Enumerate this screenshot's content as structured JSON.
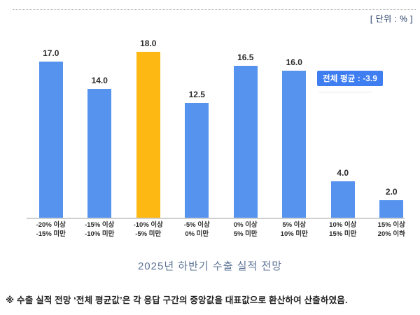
{
  "unit_label": "[ 단위 : % ]",
  "average_badge_label": "전체 평균 : -3.9",
  "average_value": -3.9,
  "chart_title": "2025년 하반기 수출 실적 전망",
  "footnote": "※ 수출 실적 전망 ‘전체 평균값’은 각 응답 구간의 중앙값을 대표값으로 환산하여 산출하였음.",
  "colors": {
    "bar_blue": "#5593ef",
    "bar_highlight_orange": "#fdb813",
    "badge_bg": "#3e7ef0",
    "badge_text": "#ffffff",
    "title_text": "#5c7394",
    "axis_line": "#cfcfcf"
  },
  "chart_data": {
    "type": "bar",
    "title": "2025년 하반기 수출 실적 전망",
    "unit": "%",
    "categories": [
      "-20% 이상\n-15% 미만",
      "-15% 이상\n-10% 미만",
      "-10% 이상\n-5% 미만",
      "-5% 이상\n0% 미만",
      "0% 이상\n5% 미만",
      "5% 이상\n10% 미만",
      "10% 이상\n15% 미만",
      "15% 이상\n20% 이하"
    ],
    "values": [
      17.0,
      14.0,
      18.0,
      12.5,
      16.5,
      16.0,
      4.0,
      2.0
    ],
    "value_labels": [
      "17.0",
      "14.0",
      "18.0",
      "12.5",
      "16.5",
      "16.0",
      "4.0",
      "2.0"
    ],
    "highlight_index": 2,
    "overall_average": -3.9,
    "ylim": [
      0,
      20
    ],
    "grid": false,
    "legend": "none",
    "xlabel": "",
    "ylabel": ""
  }
}
